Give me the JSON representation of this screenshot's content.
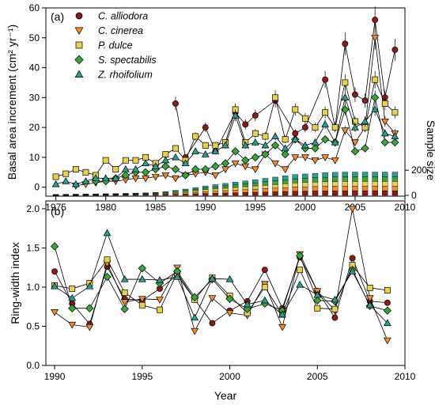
{
  "chart_data": [
    {
      "type": "line",
      "panel_label": "(a)",
      "ylabel": "Basal area increment (cm² yr⁻¹)",
      "y2label": "Sample size",
      "xlim": [
        1974,
        2010
      ],
      "ylim": [
        -3,
        60
      ],
      "xticks": [
        1975,
        1980,
        1985,
        1990,
        1995,
        2000,
        2005,
        2010
      ],
      "yticks": [
        0,
        10,
        20,
        30,
        40,
        50,
        60
      ],
      "y2ticks": [
        0,
        200
      ],
      "x": [
        1975,
        1976,
        1977,
        1978,
        1979,
        1980,
        1981,
        1982,
        1983,
        1984,
        1985,
        1986,
        1987,
        1988,
        1989,
        1990,
        1991,
        1992,
        1993,
        1994,
        1995,
        1996,
        1997,
        1998,
        1999,
        2000,
        2001,
        2002,
        2003,
        2004,
        2005,
        2006,
        2007,
        2008,
        2009
      ],
      "series": [
        {
          "name": "C. alliodora",
          "color": "#8b1a1a",
          "marker": "circle",
          "values": [
            null,
            null,
            null,
            null,
            null,
            null,
            null,
            null,
            null,
            null,
            null,
            null,
            28,
            10,
            null,
            20,
            12,
            null,
            25,
            21,
            24,
            null,
            29,
            null,
            18,
            20,
            null,
            36,
            20,
            48,
            31,
            29,
            56,
            30,
            46
          ]
        },
        {
          "name": "C. cinerea",
          "color": "#f08a2e",
          "marker": "triangle-down",
          "values": [
            null,
            null,
            0.5,
            1,
            1.5,
            2,
            2,
            2.5,
            3,
            3,
            3.5,
            4,
            3,
            4,
            4.5,
            5,
            4,
            6,
            8,
            7,
            6,
            11,
            8,
            6,
            10,
            10,
            9,
            10,
            9,
            19,
            15,
            20,
            50,
            22,
            18
          ]
        },
        {
          "name": "P. dulce",
          "color": "#e6d24a",
          "marker": "square",
          "values": [
            3.5,
            4.5,
            6,
            5,
            4,
            9,
            6,
            9,
            9,
            10,
            8,
            11,
            13,
            9,
            17,
            14,
            14,
            15,
            26,
            15,
            18,
            17,
            30,
            16,
            26,
            23,
            20,
            25,
            20,
            35,
            22,
            20,
            36,
            28,
            25
          ]
        },
        {
          "name": "S. spectabilis",
          "color": "#3aa33a",
          "marker": "diamond",
          "values": [
            null,
            null,
            null,
            null,
            2,
            2,
            3,
            4,
            5,
            5,
            6,
            7,
            6,
            4,
            6,
            6,
            7,
            8,
            12,
            9,
            10,
            11,
            14,
            11,
            16,
            13,
            13,
            16,
            15,
            26,
            12,
            13,
            30,
            15,
            15
          ]
        },
        {
          "name": "Z. rhoifolium",
          "color": "#2a9d8f",
          "marker": "triangle-up",
          "values": [
            1,
            2,
            1,
            2,
            3,
            3,
            3,
            6,
            6,
            8,
            7,
            9,
            10,
            8,
            12,
            11,
            12,
            14,
            24,
            14,
            15,
            14,
            17,
            13,
            16,
            14,
            15,
            21,
            15,
            30,
            20,
            22,
            26,
            18,
            17
          ]
        }
      ],
      "sample_size": {
        "series_order": [
          "C. alliodora",
          "C. cinerea",
          "P. dulce",
          "S. spectabilis",
          "Z. rhoifolium"
        ],
        "values": [
          8,
          9,
          10,
          11,
          12,
          13,
          14,
          16,
          18,
          20,
          24,
          30,
          40,
          50,
          62,
          75,
          85,
          95,
          105,
          115,
          125,
          135,
          145,
          155,
          165,
          170,
          175,
          180,
          183,
          185,
          185,
          185,
          185,
          185,
          185
        ]
      },
      "legend": {
        "placement": "top-left",
        "entries": [
          "C. alliodora",
          "C. cinerea",
          "P. dulce",
          "S. spectabilis",
          "Z. rhoifolium"
        ]
      },
      "error_bars": true
    },
    {
      "type": "line",
      "panel_label": "(b)",
      "xlabel": "Year",
      "ylabel": "Ring-width index",
      "xlim": [
        1989.5,
        2010
      ],
      "ylim": [
        0,
        2.1
      ],
      "xticks": [
        1990,
        1995,
        2000,
        2005,
        2010
      ],
      "yticks": [
        0.0,
        0.5,
        1.0,
        1.5,
        2.0
      ],
      "ytick_labels": [
        "0.0",
        "0.5",
        "1.0",
        "1.5",
        "2.0"
      ],
      "x": [
        1990,
        1991,
        1992,
        1993,
        1994,
        1995,
        1996,
        1997,
        1998,
        1999,
        2000,
        2001,
        2002,
        2003,
        2004,
        2005,
        2006,
        2007,
        2008,
        2009
      ],
      "series": [
        {
          "name": "C. alliodora",
          "color": "#8b1a1a",
          "marker": "circle",
          "values": [
            1.2,
            0.79,
            0.53,
            1.26,
            0.85,
            0.83,
            0.98,
            1.15,
            0.84,
            0.54,
            0.7,
            0.82,
            1.22,
            0.73,
            1.38,
            0.95,
            0.61,
            1.37,
            0.82,
            0.8
          ]
        },
        {
          "name": "C. cinerea",
          "color": "#f08a2e",
          "marker": "triangle-down",
          "values": [
            0.68,
            0.52,
            0.49,
            1.3,
            0.81,
            0.85,
            0.84,
            1.25,
            0.44,
            0.86,
            0.67,
            0.64,
            1.04,
            0.49,
            1.42,
            0.95,
            0.7,
            2.0,
            0.86,
            0.32
          ]
        },
        {
          "name": "P. dulce",
          "color": "#e6d24a",
          "marker": "square",
          "values": [
            1.02,
            0.98,
            1.05,
            1.35,
            0.93,
            0.77,
            0.71,
            1.18,
            0.84,
            1.12,
            0.89,
            0.67,
            1.0,
            0.65,
            1.22,
            0.73,
            0.72,
            1.28,
            0.99,
            0.96
          ]
        },
        {
          "name": "S. spectabilis",
          "color": "#3aa33a",
          "marker": "diamond",
          "values": [
            1.52,
            0.73,
            0.73,
            1.13,
            0.72,
            1.24,
            1.05,
            1.2,
            0.87,
            1.1,
            0.85,
            0.72,
            0.79,
            0.7,
            1.4,
            0.83,
            0.82,
            1.22,
            0.76,
            0.7
          ]
        },
        {
          "name": "Z. rhoifolium",
          "color": "#2a9d8f",
          "marker": "triangle-up",
          "values": [
            1.01,
            0.86,
            1.01,
            1.69,
            1.1,
            1.1,
            1.09,
            1.13,
            0.61,
            1.11,
            1.1,
            0.78,
            0.83,
            0.65,
            1.03,
            0.9,
            0.84,
            1.2,
            0.77,
            0.54
          ]
        }
      ]
    }
  ]
}
